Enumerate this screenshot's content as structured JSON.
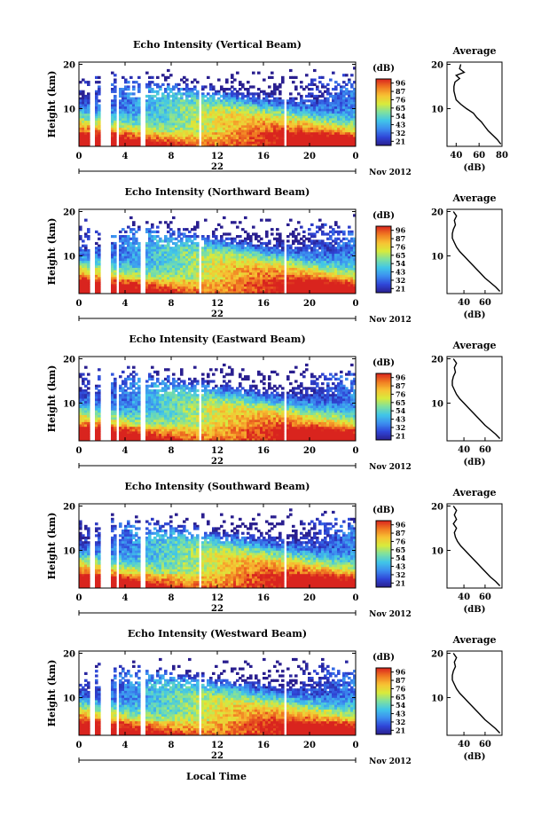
{
  "figure": {
    "xlabel": "Local Time",
    "colorbar_unit": "(dB)",
    "average_title": "Average",
    "average_xlabel": "(dB)"
  },
  "chart_data": [
    {
      "type": "heatmap",
      "title": "Echo Intensity (Vertical Beam)",
      "ylabel": "Height (km)",
      "y_ticks": [
        10,
        20
      ],
      "ylim": [
        1.5,
        20.5
      ],
      "x_ticks": [
        "0",
        "4",
        "8",
        "12",
        "16",
        "20",
        "0"
      ],
      "xlim": [
        0,
        24
      ],
      "date_label": "22",
      "month_label": "Nov 2012",
      "colorbar_ticks": [
        "96",
        "87",
        "76",
        "65",
        "54",
        "43",
        "32",
        "21"
      ],
      "colorbar_range": [
        21,
        96
      ],
      "gaps_hours": [
        [
          0.95,
          1.3
        ],
        [
          1.95,
          2.75
        ],
        [
          3.25,
          3.55
        ],
        [
          4.05,
          4.15
        ],
        [
          5.35,
          5.7
        ],
        [
          10.35,
          10.6
        ],
        [
          17.7,
          17.9
        ]
      ],
      "average_profile": {
        "x_ticks": [
          40,
          60,
          80
        ],
        "xlim": [
          32,
          80
        ],
        "height_km": [
          2,
          3,
          4,
          5,
          6,
          7,
          8,
          9,
          10,
          11,
          12,
          13,
          14,
          15,
          16,
          16.8,
          17.5,
          18.2,
          19,
          20
        ],
        "db": [
          79,
          76,
          72,
          68,
          65,
          62,
          58,
          55,
          49,
          44,
          40,
          39,
          38,
          38,
          39,
          43,
          40,
          47,
          43,
          44
        ]
      }
    },
    {
      "type": "heatmap",
      "title": "Echo Intensity (Northward Beam)",
      "ylabel": "Height (km)",
      "y_ticks": [
        10,
        20
      ],
      "ylim": [
        1.5,
        20.5
      ],
      "x_ticks": [
        "0",
        "4",
        "8",
        "12",
        "16",
        "20",
        "0"
      ],
      "xlim": [
        0,
        24
      ],
      "date_label": "22",
      "month_label": "Nov 2012",
      "colorbar_ticks": [
        "96",
        "87",
        "76",
        "65",
        "54",
        "43",
        "32",
        "21"
      ],
      "colorbar_range": [
        21,
        96
      ],
      "gaps_hours": [
        [
          0.95,
          1.3
        ],
        [
          1.95,
          2.75
        ],
        [
          3.25,
          3.55
        ],
        [
          4.05,
          4.15
        ],
        [
          5.35,
          5.7
        ],
        [
          10.35,
          10.6
        ],
        [
          17.7,
          17.9
        ]
      ],
      "average_profile": {
        "x_ticks": [
          40,
          60
        ],
        "xlim": [
          24,
          76
        ],
        "height_km": [
          2,
          3,
          4,
          5,
          6,
          7,
          8,
          9,
          10,
          11,
          12,
          13,
          14,
          15,
          16,
          17,
          18,
          19,
          20
        ],
        "db": [
          74,
          70,
          65,
          60,
          56,
          52,
          48,
          44,
          40,
          36,
          33,
          31,
          29,
          29,
          30,
          32,
          31,
          33,
          30
        ]
      }
    },
    {
      "type": "heatmap",
      "title": "Echo Intensity (Eastward Beam)",
      "ylabel": "Height (km)",
      "y_ticks": [
        10,
        20
      ],
      "ylim": [
        1.5,
        20.5
      ],
      "x_ticks": [
        "0",
        "4",
        "8",
        "12",
        "16",
        "20",
        "0"
      ],
      "xlim": [
        0,
        24
      ],
      "date_label": "22",
      "month_label": "Nov 2012",
      "colorbar_ticks": [
        "96",
        "87",
        "76",
        "65",
        "54",
        "43",
        "32",
        "21"
      ],
      "colorbar_range": [
        21,
        96
      ],
      "gaps_hours": [
        [
          0.95,
          1.3
        ],
        [
          1.95,
          2.75
        ],
        [
          3.25,
          3.55
        ],
        [
          4.05,
          4.15
        ],
        [
          5.35,
          5.7
        ],
        [
          10.35,
          10.6
        ],
        [
          17.7,
          17.9
        ]
      ],
      "average_profile": {
        "x_ticks": [
          40,
          60
        ],
        "xlim": [
          24,
          76
        ],
        "height_km": [
          2,
          3,
          4,
          5,
          6,
          7,
          8,
          9,
          10,
          11,
          12,
          13,
          14,
          15,
          16,
          17,
          18,
          19,
          20
        ],
        "db": [
          74,
          70,
          65,
          60,
          56,
          52,
          48,
          44,
          40,
          36,
          33,
          31,
          29,
          29,
          30,
          32,
          31,
          33,
          30
        ]
      }
    },
    {
      "type": "heatmap",
      "title": "Echo Intensity (Southward Beam)",
      "ylabel": "Height (km)",
      "y_ticks": [
        10,
        20
      ],
      "ylim": [
        1.5,
        20.5
      ],
      "x_ticks": [
        "0",
        "4",
        "8",
        "12",
        "16",
        "20",
        "0"
      ],
      "xlim": [
        0,
        24
      ],
      "date_label": "22",
      "month_label": "Nov 2012",
      "colorbar_ticks": [
        "96",
        "87",
        "76",
        "65",
        "54",
        "43",
        "32",
        "21"
      ],
      "colorbar_range": [
        21,
        96
      ],
      "gaps_hours": [
        [
          0.95,
          1.3
        ],
        [
          1.95,
          2.75
        ],
        [
          3.25,
          3.55
        ],
        [
          4.05,
          4.15
        ],
        [
          5.35,
          5.7
        ],
        [
          10.35,
          10.6
        ],
        [
          17.7,
          17.9
        ]
      ],
      "average_profile": {
        "x_ticks": [
          40,
          60
        ],
        "xlim": [
          24,
          76
        ],
        "height_km": [
          2,
          3,
          4,
          5,
          6,
          7,
          8,
          9,
          10,
          11,
          12,
          13,
          14,
          15,
          16,
          17,
          18,
          19,
          20
        ],
        "db": [
          74,
          70,
          65,
          61,
          57,
          53,
          49,
          45,
          41,
          37,
          34,
          32,
          31,
          33,
          30,
          33,
          31,
          33,
          30
        ]
      }
    },
    {
      "type": "heatmap",
      "title": "Echo Intensity (Westward Beam)",
      "ylabel": "Height (km)",
      "y_ticks": [
        10,
        20
      ],
      "ylim": [
        1.5,
        20.5
      ],
      "x_ticks": [
        "0",
        "4",
        "8",
        "12",
        "16",
        "20",
        "0"
      ],
      "xlim": [
        0,
        24
      ],
      "date_label": "22",
      "month_label": "Nov 2012",
      "colorbar_ticks": [
        "96",
        "87",
        "76",
        "65",
        "54",
        "43",
        "32",
        "21"
      ],
      "colorbar_range": [
        21,
        96
      ],
      "gaps_hours": [
        [
          0.95,
          1.3
        ],
        [
          1.95,
          2.75
        ],
        [
          3.25,
          3.55
        ],
        [
          4.05,
          4.15
        ],
        [
          5.35,
          5.7
        ],
        [
          10.35,
          10.6
        ],
        [
          17.7,
          17.9
        ]
      ],
      "average_profile": {
        "x_ticks": [
          40,
          60
        ],
        "xlim": [
          24,
          76
        ],
        "height_km": [
          2,
          3,
          4,
          5,
          6,
          7,
          8,
          9,
          10,
          11,
          12,
          13,
          14,
          15,
          16,
          17,
          18,
          19,
          20
        ],
        "db": [
          74,
          70,
          65,
          60,
          56,
          52,
          48,
          44,
          40,
          36,
          33,
          31,
          29,
          29,
          30,
          32,
          31,
          33,
          30
        ]
      }
    }
  ],
  "colors": {
    "colormap": [
      "#2a1f8f",
      "#2f46d8",
      "#3c8ef0",
      "#41c6e8",
      "#7ee0a0",
      "#d8ea3c",
      "#f7c233",
      "#f07a22",
      "#d9241e"
    ]
  }
}
